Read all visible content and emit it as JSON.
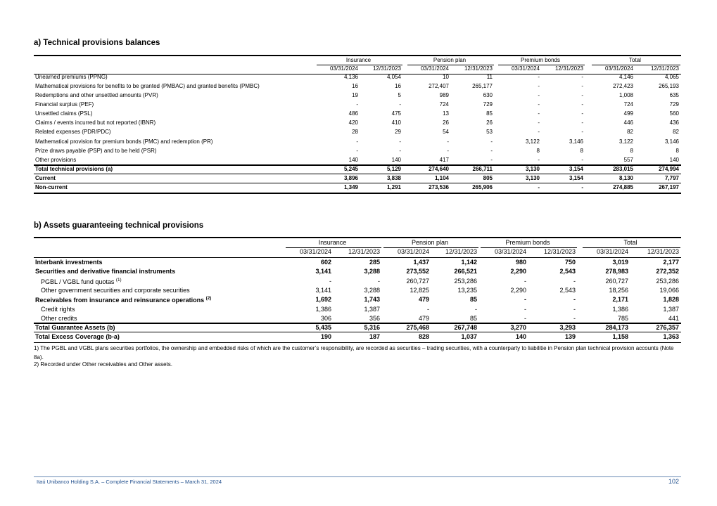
{
  "section_a": {
    "title": "a) Technical provisions balances",
    "groups": [
      "Insurance",
      "Pension plan",
      "Premium bonds",
      "Total"
    ],
    "dates": [
      "03/31/2024",
      "12/31/2023",
      "03/31/2024",
      "12/31/2023",
      "03/31/2024",
      "12/31/2023",
      "03/31/2024",
      "12/31/2023"
    ],
    "rows": [
      {
        "label": "Unearned premiums  (PPNG)",
        "values": [
          "4,136",
          "4,054",
          "10",
          "11",
          "-",
          "-",
          "4,146",
          "4,065"
        ]
      },
      {
        "label": "Mathematical provisions for benefits to be granted (PMBAC) and granted benefits (PMBC)",
        "values": [
          "16",
          "16",
          "272,407",
          "265,177",
          "-",
          "-",
          "272,423",
          "265,193"
        ]
      },
      {
        "label": "Redemptions and other unsettled amounts (PVR)",
        "values": [
          "19",
          "5",
          "989",
          "630",
          "-",
          "-",
          "1,008",
          "635"
        ]
      },
      {
        "label": "Financial surplus  (PEF)",
        "values": [
          "-",
          "-",
          "724",
          "729",
          "-",
          "-",
          "724",
          "729"
        ]
      },
      {
        "label": "Unsettled claims (PSL)",
        "values": [
          "486",
          "475",
          "13",
          "85",
          "-",
          "-",
          "499",
          "560"
        ]
      },
      {
        "label": "Claims / events incurred but not reported (IBNR)",
        "values": [
          "420",
          "410",
          "26",
          "26",
          "-",
          "-",
          "446",
          "436"
        ]
      },
      {
        "label": "Related expenses (PDR/PDC)",
        "values": [
          "28",
          "29",
          "54",
          "53",
          "-",
          "-",
          "82",
          "82"
        ]
      },
      {
        "label": "Mathematical provision for premium bonds (PMC) and redemption (PR)",
        "values": [
          "-",
          "-",
          "-",
          "-",
          "3,122",
          "3,146",
          "3,122",
          "3,146"
        ]
      },
      {
        "label": "Prize draws payable (PSP) and to be held (PSR)",
        "values": [
          "-",
          "-",
          "-",
          "-",
          "8",
          "8",
          "8",
          "8"
        ]
      },
      {
        "label": "Other provisions",
        "values": [
          "140",
          "140",
          "417",
          "-",
          "-",
          "-",
          "557",
          "140"
        ]
      },
      {
        "label": "Total technical provisions (a)",
        "values": [
          "5,245",
          "5,129",
          "274,640",
          "266,711",
          "3,130",
          "3,154",
          "283,015",
          "274,994"
        ],
        "bold": true
      },
      {
        "label": "Current",
        "values": [
          "3,896",
          "3,838",
          "1,104",
          "805",
          "3,130",
          "3,154",
          "8,130",
          "7,797"
        ],
        "bold": true
      },
      {
        "label": "Non-current",
        "values": [
          "1,349",
          "1,291",
          "273,536",
          "265,906",
          "-",
          "-",
          "274,885",
          "267,197"
        ],
        "bold": true
      }
    ]
  },
  "section_b": {
    "title": "b) Assets guaranteeing technical provisions",
    "groups": [
      "Insurance",
      "Pension plan",
      "Premium bonds",
      "Total"
    ],
    "dates": [
      "03/31/2024",
      "12/31/2023",
      "03/31/2024",
      "12/31/2023",
      "03/31/2024",
      "12/31/2023",
      "03/31/2024",
      "12/31/2023"
    ],
    "rows": [
      {
        "label": "Interbank investments",
        "values": [
          "602",
          "285",
          "1,437",
          "1,142",
          "980",
          "750",
          "3,019",
          "2,177"
        ],
        "bold": true
      },
      {
        "label": "Securities and derivative financial instruments",
        "values": [
          "3,141",
          "3,288",
          "273,552",
          "266,521",
          "2,290",
          "2,543",
          "278,983",
          "272,352"
        ],
        "bold": true
      },
      {
        "label": "PGBL / VGBL fund quotas",
        "note": "(1)",
        "values": [
          "-",
          "-",
          "260,727",
          "253,286",
          "-",
          "-",
          "260,727",
          "253,286"
        ],
        "indent": true
      },
      {
        "label": "Other government securities and corporate securities",
        "values": [
          "3,141",
          "3,288",
          "12,825",
          "13,235",
          "2,290",
          "2,543",
          "18,256",
          "19,066"
        ],
        "indent": true
      },
      {
        "label": "Receivables from insurance and reinsurance operations",
        "note": "(2)",
        "values": [
          "1,692",
          "1,743",
          "479",
          "85",
          "-",
          "-",
          "2,171",
          "1,828"
        ],
        "bold": true
      },
      {
        "label": "Credit rights",
        "values": [
          "1,386",
          "1,387",
          "-",
          "-",
          "-",
          "-",
          "1,386",
          "1,387"
        ],
        "indent": true
      },
      {
        "label": "Other credits",
        "values": [
          "306",
          "356",
          "479",
          "85",
          "-",
          "-",
          "785",
          "441"
        ],
        "indent": true
      },
      {
        "label": "Total Guarantee Assets (b)",
        "values": [
          "5,435",
          "5,316",
          "275,468",
          "267,748",
          "3,270",
          "3,293",
          "284,173",
          "276,357"
        ],
        "bold": true
      },
      {
        "label": "Total Excess Coverage (b-a)",
        "values": [
          "190",
          "187",
          "828",
          "1,037",
          "140",
          "139",
          "1,158",
          "1,363"
        ],
        "bold": true
      }
    ],
    "footnotes": [
      "1) The PGBL and VGBL plans securities portfolios, the ownership and embedded risks of which are the customer’s responsibility, are recorded as securities – trading securities, with a counterparty to liabilitie in Pension plan technical provision accounts (Note 8a).",
      "2) Recorded under Other receivables and Other assets."
    ]
  },
  "footer": {
    "text": "Itaú Unibanco Holding S.A. – Complete Financial Statements – March 31, 2024",
    "page": "102"
  }
}
